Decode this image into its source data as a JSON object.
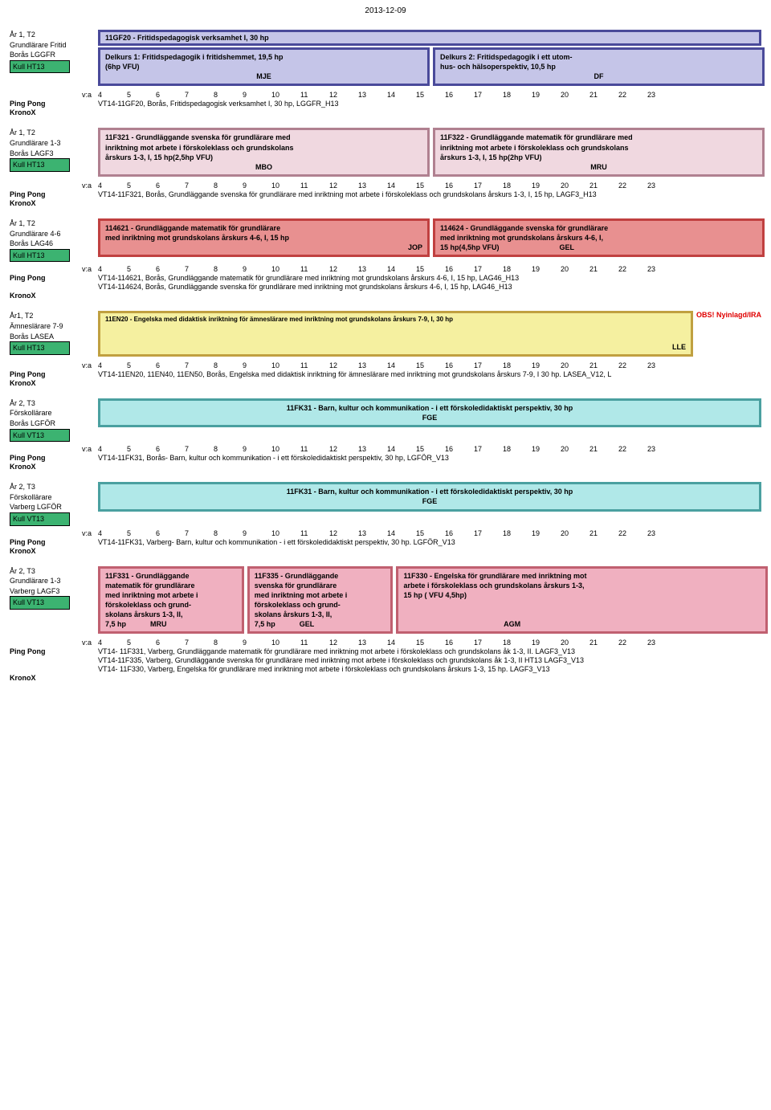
{
  "date": "2013-12-09",
  "weeks": [
    "4",
    "5",
    "6",
    "7",
    "8",
    "9",
    "10",
    "11",
    "12",
    "13",
    "14",
    "15",
    "16",
    "17",
    "18",
    "19",
    "20",
    "21",
    "22",
    "23"
  ],
  "pp_label": "Ping Pong",
  "kronox_label": "KronoX",
  "va_label": "v:a",
  "sections": [
    {
      "left": [
        "År 1, T2",
        "Grundlärare Fritid",
        "Borås LGGFR"
      ],
      "kull": "Kull HT13",
      "header": {
        "text": "11GF20 - Fritidspedagogisk verksamhet I, 30 hp",
        "cls": "box-purple"
      },
      "boxes": [
        {
          "cls": "box-purple",
          "lines": [
            "Delkurs 1: Fritidspedagogik i fritidshemmet, 19,5 hp",
            "(6hp VFU)"
          ],
          "tag": "MJE",
          "tag_align": "ctr",
          "width": "50%"
        },
        {
          "cls": "box-purple",
          "lines": [
            "Delkurs 2: Fritidspedagogik i ett utom-",
            "hus- och hälsoperspektiv, 10,5 hp"
          ],
          "tag": "DF",
          "tag_align": "ctr",
          "width": "50%"
        }
      ],
      "va": true,
      "pp": [
        "VT14-11GF20, Borås, Fritidspedagogisk verksamhet I, 30 hp, LGGFR_H13"
      ],
      "kronox": true
    },
    {
      "left": [
        "År 1, T2",
        "Grundlärare 1-3",
        "Borås LAGF3"
      ],
      "kull": "Kull HT13",
      "boxes": [
        {
          "cls": "box-pink",
          "lines": [
            "11F321 - Grundläggande svenska för grundlärare med",
            "inriktning mot arbete i förskoleklass och grundskolans",
            "årskurs 1-3, I, 15 hp(2,5hp VFU)"
          ],
          "tag": "MBO",
          "tag_align": "ctr",
          "width": "50%"
        },
        {
          "cls": "box-pink",
          "lines": [
            "11F322 - Grundläggande matematik för grundlärare med",
            "inriktning mot arbete i förskoleklass och grundskolans",
            "årskurs 1-3, I, 15 hp(2hp VFU)"
          ],
          "tag": "MRU",
          "tag_align": "ctr",
          "width": "50%"
        }
      ],
      "va": true,
      "pp": [
        "VT14-11F321, Borås, Grundläggande svenska för grundlärare med inriktning mot arbete i förskoleklass och grundskolans årskurs 1-3, I, 15 hp, LAGF3_H13"
      ],
      "kronox": true
    },
    {
      "left": [
        "År 1, T2",
        "Grundlärare 4-6",
        "Borås LAG46"
      ],
      "kull": "Kull HT13",
      "boxes": [
        {
          "cls": "box-red",
          "lines": [
            "114621 - Grundläggande matematik för grundlärare",
            "med inriktning mot grundskolans årskurs 4-6, I, 15 hp"
          ],
          "tag": "JOP",
          "tag_align": "right",
          "width": "50%"
        },
        {
          "cls": "box-red",
          "lines": [
            "114624 - Grundläggande svenska för grundlärare",
            "med inriktning mot grundskolans årskurs 4-6, I,",
            "15 hp(4,5hp VFU)                              GEL"
          ],
          "tag": "",
          "width": "50%"
        }
      ],
      "va": true,
      "pp": [
        "VT14-114621, Borås, Grundläggande matematik för grundlärare med inriktning mot grundskolans årskurs 4-6, I, 15 hp, LAG46_H13",
        "VT14-114624, Borås, Grundläggande svenska för grundlärare med inriktning mot grundskolans årskurs 4-6, I, 15 hp, LAG46_H13"
      ],
      "kronox": true
    },
    {
      "left": [
        "År1, T2",
        "Ämneslärare 7-9",
        "Borås LASEA"
      ],
      "kull": "Kull HT13",
      "obs": "OBS! Nyinlagd/IRA",
      "boxes": [
        {
          "cls": "box-yellow",
          "lines": [
            "11EN20 - Engelska med didaktisk inriktning för ämneslärare med inriktning mot grundskolans årskurs 7-9, I, 30 hp",
            "",
            ""
          ],
          "tag": "LLE",
          "tag_align": "right",
          "width": "100%",
          "tiny": true
        }
      ],
      "va": true,
      "pp": [
        "VT14-11EN20, 11EN40, 11EN50, Borås, Engelska med didaktisk inriktning för ämneslärare med inriktning mot grundskolans årskurs 7-9, I 30 hp. LASEA_V12, L"
      ],
      "kronox": true
    },
    {
      "left": [
        "År 2, T3",
        "Förskollärare",
        "Borås LGFÖR"
      ],
      "kull": "Kull VT13",
      "boxes": [
        {
          "cls": "box-cyan",
          "lines": [
            "11FK31 - Barn, kultur och kommunikation - i ett förskoledidaktiskt perspektiv, 30 hp"
          ],
          "tag": "FGE",
          "tag_align": "ctr",
          "width": "100%",
          "center": true
        }
      ],
      "va": true,
      "pp": [
        "VT14-11FK31, Borås- Barn, kultur och kommunikation - i ett förskoledidaktiskt perspektiv, 30 hp, LGFÖR_V13"
      ],
      "kronox": true
    },
    {
      "left": [
        "År 2, T3",
        "Förskollärare",
        "Varberg LGFÖR"
      ],
      "kull": "Kull VT13",
      "boxes": [
        {
          "cls": "box-cyan",
          "lines": [
            "11FK31 - Barn, kultur och kommunikation - i ett förskoledidaktiskt perspektiv, 30 hp"
          ],
          "tag": "FGE",
          "tag_align": "ctr",
          "width": "100%",
          "center": true
        }
      ],
      "va": true,
      "pp": [
        "VT14-11FK31, Varberg- Barn, kultur och kommunikation - i ett förskoledidaktiskt perspektiv, 30 hp. LGFÖR_V13"
      ],
      "kronox": true
    },
    {
      "left": [
        "År 2, T3",
        "Grundlärare 1-3",
        "Varberg LAGF3"
      ],
      "kull": "Kull VT13",
      "boxes": [
        {
          "cls": "box-rose",
          "lines": [
            "11F331 - Grundläggande",
            "matematik för grundlärare",
            "med inriktning mot arbete i",
            "förskoleklass och grund-",
            "skolans årskurs 1-3, II,",
            "7,5 hp            MRU"
          ],
          "tag": "",
          "width": "22%"
        },
        {
          "cls": "box-rose",
          "lines": [
            "11F335 - Grundläggande",
            "svenska för grundlärare",
            "med inriktning mot arbete i",
            "förskoleklass och grund-",
            "skolans årskurs 1-3, II,",
            "7,5 hp            GEL"
          ],
          "tag": "",
          "width": "22%"
        },
        {
          "cls": "box-rose",
          "lines": [
            "11F330 - Engelska för grundlärare med inriktning mot",
            "arbete i förskoleklass och grundskolans årskurs 1-3,",
            "15 hp ( VFU 4,5hp)",
            "",
            "",
            "                                                  AGM"
          ],
          "tag": "",
          "width": "56%"
        }
      ],
      "va": true,
      "pp": [
        "VT14- 11F331, Varberg, Grundläggande matematik för grundlärare med inriktning mot arbete i förskoleklass och grundskolans åk 1-3, II. LAGF3_V13",
        "VT14-11F335, Varberg, Grundläggande svenska för grundlärare med inriktning mot arbete i förskoleklass och grundskolans åk 1-3, II HT13 LAGF3_V13",
        "VT14- 11F330, Varberg, Engelska för grundlärare med inriktning mot arbete i förskoleklass och grundskolans årskurs 1-3, 15 hp. LAGF3_V13"
      ],
      "kronox": true
    }
  ]
}
